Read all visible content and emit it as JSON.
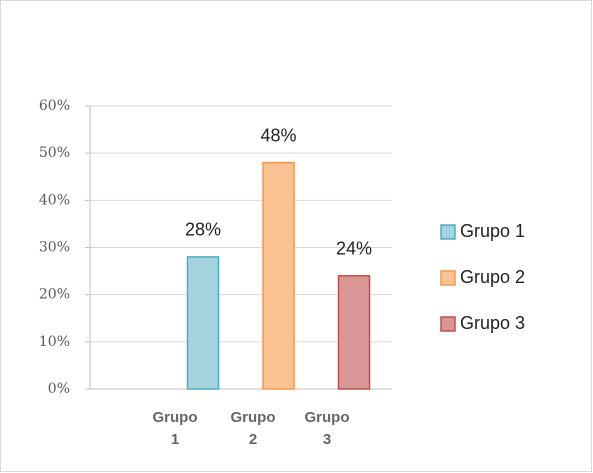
{
  "chart_data": {
    "type": "bar",
    "categories": [
      "Grupo 1",
      "Grupo 2",
      "Grupo 3"
    ],
    "values": [
      28,
      48,
      24
    ],
    "value_labels": [
      "28%",
      "48%",
      "24%"
    ],
    "colors": [
      "#a5d3e0",
      "#fac393",
      "#da9694"
    ],
    "border_colors": [
      "#4bacc6",
      "#f79646",
      "#c0504d"
    ],
    "ylim": [
      0,
      60
    ],
    "yticks": [
      {
        "value": 0,
        "label": "0%"
      },
      {
        "value": 10,
        "label": "10%"
      },
      {
        "value": 20,
        "label": "20%"
      },
      {
        "value": 30,
        "label": "30%"
      },
      {
        "value": 40,
        "label": "40%"
      },
      {
        "value": 50,
        "label": "50%"
      },
      {
        "value": 60,
        "label": "60%"
      }
    ],
    "grid": true,
    "legend": "right"
  }
}
